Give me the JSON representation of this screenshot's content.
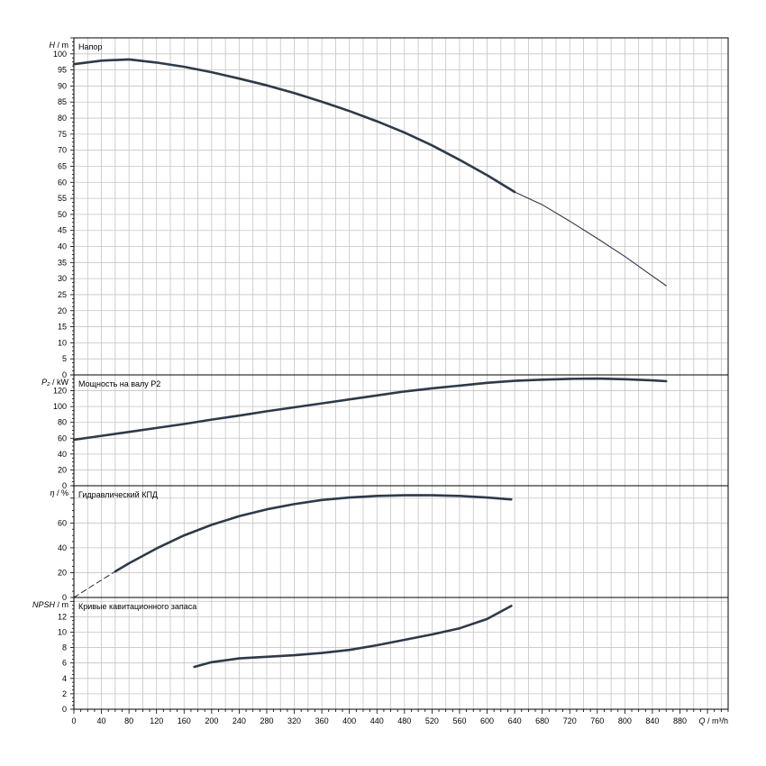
{
  "chart_data": [
    {
      "type": "line",
      "title": "Напор",
      "ylabel_symbol": "H",
      "ylabel_unit": "/ m",
      "ylim": [
        0,
        105
      ],
      "yticks": [
        "0",
        "5",
        "10",
        "15",
        "20",
        "25",
        "30",
        "35",
        "40",
        "45",
        "50",
        "55",
        "60",
        "65",
        "70",
        "75",
        "80",
        "85",
        "90",
        "95",
        "100"
      ],
      "grid": true,
      "series": [
        {
          "x": [
            0,
            40,
            80,
            120,
            160,
            200,
            240,
            280,
            320,
            360,
            400,
            440,
            480,
            520,
            560,
            600,
            640
          ],
          "y": [
            96.8,
            97.9,
            98.3,
            97.3,
            96.0,
            94.3,
            92.3,
            90.2,
            87.8,
            85.1,
            82.2,
            79.0,
            75.5,
            71.5,
            67.0,
            62.2,
            57.0
          ],
          "weight": "bold"
        },
        {
          "x": [
            640,
            680,
            720,
            760,
            800,
            840,
            860
          ],
          "y": [
            57.0,
            53.0,
            47.9,
            42.5,
            36.9,
            30.8,
            27.8
          ],
          "weight": "thin"
        }
      ]
    },
    {
      "type": "line",
      "title": "Мощность на валу P2",
      "ylabel_symbol": "P₂",
      "ylabel_unit": "/ kW",
      "ylim": [
        0,
        140
      ],
      "yticks": [
        "0",
        "20",
        "40",
        "60",
        "80",
        "100",
        "120"
      ],
      "grid": true,
      "series": [
        {
          "x": [
            0,
            40,
            80,
            120,
            160,
            200,
            240,
            280,
            320,
            360,
            400,
            440,
            480,
            520,
            560,
            600,
            640,
            680,
            720,
            760,
            800,
            840,
            860
          ],
          "y": [
            58,
            63,
            68,
            73,
            78,
            83.5,
            88.5,
            94,
            99,
            104,
            109,
            114,
            119,
            123,
            126.5,
            130,
            132.5,
            134,
            135,
            135.3,
            134.5,
            133,
            132
          ],
          "weight": "bold"
        }
      ]
    },
    {
      "type": "line",
      "title": "Гидравлический КПД",
      "ylabel_symbol": "η",
      "ylabel_unit": "/ %",
      "ylim": [
        0,
        90
      ],
      "yticks": [
        "0",
        "20",
        "40",
        "60"
      ],
      "grid": true,
      "series": [
        {
          "x": [
            0,
            30,
            60
          ],
          "y": [
            0,
            10.5,
            21
          ],
          "weight": "dashed"
        },
        {
          "x": [
            60,
            80,
            120,
            160,
            200,
            240,
            280,
            320,
            360,
            400,
            440,
            480,
            520,
            560,
            600,
            635
          ],
          "y": [
            21,
            27.5,
            39.5,
            50,
            58.5,
            65.5,
            71,
            75.2,
            78.5,
            80.5,
            81.8,
            82.3,
            82.3,
            81.8,
            80.5,
            79.0
          ],
          "weight": "bold"
        }
      ]
    },
    {
      "type": "line",
      "title": "Кривые кавитационного запаса",
      "ylabel_symbol": "NPSH",
      "ylabel_unit": "/ m",
      "ylim": [
        0,
        14.5
      ],
      "yticks": [
        "0",
        "2",
        "4",
        "6",
        "8",
        "10",
        "12"
      ],
      "xlabel_symbol": "Q",
      "xlabel_unit": "/ m³/h",
      "xlim": [
        0,
        950
      ],
      "xticks": [
        "0",
        "40",
        "80",
        "120",
        "160",
        "200",
        "240",
        "280",
        "320",
        "360",
        "400",
        "440",
        "480",
        "520",
        "560",
        "600",
        "640",
        "680",
        "720",
        "760",
        "800",
        "840",
        "880"
      ],
      "grid": true,
      "series": [
        {
          "x": [
            175,
            200,
            240,
            280,
            320,
            360,
            400,
            440,
            480,
            520,
            560,
            600,
            635
          ],
          "y": [
            5.5,
            6.1,
            6.6,
            6.8,
            7.0,
            7.3,
            7.7,
            8.3,
            9.0,
            9.7,
            10.5,
            11.7,
            13.4
          ],
          "weight": "bold"
        }
      ]
    }
  ],
  "colors": {
    "curve": "#2e3a4a",
    "grid": "#c4c4c4",
    "frame": "#000000",
    "background": "#ffffff"
  }
}
